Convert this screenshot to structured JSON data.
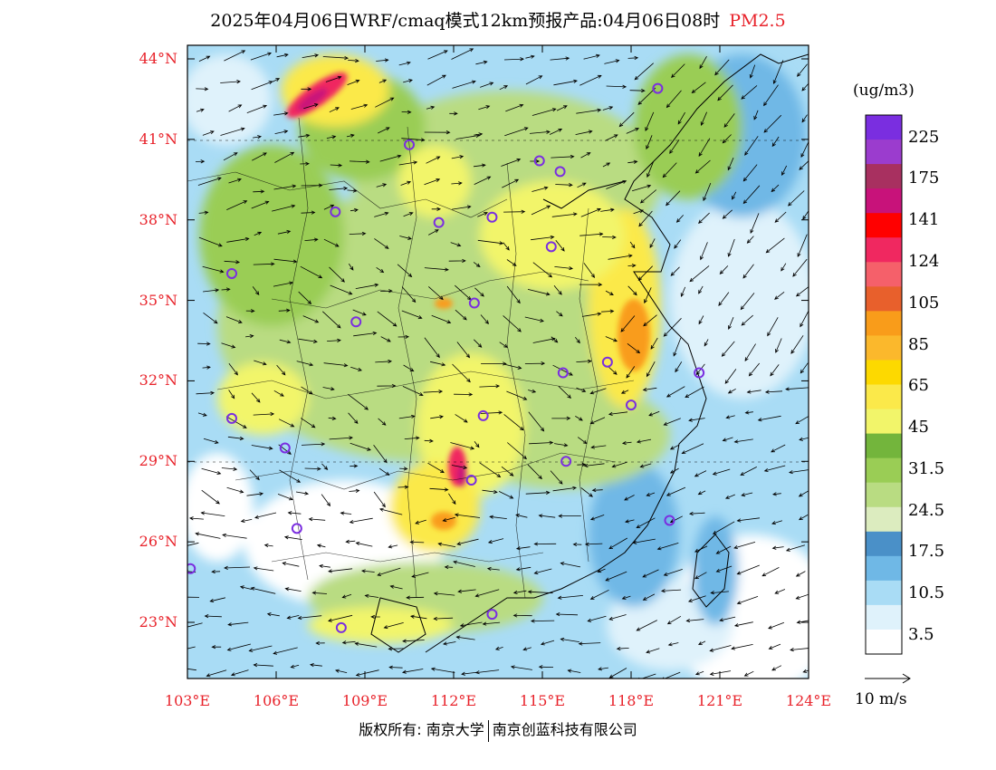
{
  "title": {
    "text": "2025年04月06日WRF/cmaq模式12km预报产品:04月06日08时",
    "variable": "PM2.5"
  },
  "map": {
    "lon_range": [
      103,
      124
    ],
    "lat_range": [
      21,
      44.5
    ],
    "lat_ticks": [
      "44°N",
      "41°N",
      "38°N",
      "35°N",
      "32°N",
      "29°N",
      "26°N",
      "23°N"
    ],
    "lon_ticks": [
      "103°E",
      "106°E",
      "109°E",
      "112°E",
      "115°E",
      "118°E",
      "121°E",
      "124°E"
    ]
  },
  "colorbar": {
    "unit": "(ug/m3)",
    "colors": [
      "#ffffff",
      "#dff2fb",
      "#a9dcf5",
      "#6fb8e6",
      "#4a90c8",
      "#dcecbf",
      "#b9dc82",
      "#9acd55",
      "#73b53c",
      "#f2f56a",
      "#fbe94a",
      "#fdd900",
      "#fbb82c",
      "#f99c1a",
      "#e8602c",
      "#f5606a",
      "#f02860",
      "#ff0000",
      "#c8127a",
      "#a83060",
      "#9b3cce",
      "#7a2ee0"
    ],
    "labels": [
      "3.5",
      "10.5",
      "17.5",
      "24.5",
      "31.5",
      "45",
      "65",
      "85",
      "105",
      "124",
      "141",
      "175",
      "225"
    ]
  },
  "wind_reference": {
    "label": "10 m/s"
  },
  "stations": [
    [
      118.9,
      42.9
    ],
    [
      110.5,
      40.8
    ],
    [
      114.9,
      40.2
    ],
    [
      115.6,
      39.8
    ],
    [
      108.0,
      38.3
    ],
    [
      111.5,
      37.9
    ],
    [
      113.3,
      38.1
    ],
    [
      115.3,
      37.0
    ],
    [
      104.5,
      36.0
    ],
    [
      112.7,
      34.9
    ],
    [
      108.7,
      34.2
    ],
    [
      117.2,
      32.7
    ],
    [
      115.7,
      32.3
    ],
    [
      120.3,
      32.3
    ],
    [
      118.0,
      31.1
    ],
    [
      104.5,
      30.6
    ],
    [
      113.0,
      30.7
    ],
    [
      106.3,
      29.5
    ],
    [
      115.8,
      29.0
    ],
    [
      112.6,
      28.3
    ],
    [
      119.3,
      26.8
    ],
    [
      106.7,
      26.5
    ],
    [
      103.1,
      25.0
    ],
    [
      108.2,
      22.8
    ],
    [
      113.3,
      23.3
    ]
  ],
  "footer": {
    "left": "版权所有: 南京大学",
    "right": "南京创蓝科技有限公司"
  }
}
